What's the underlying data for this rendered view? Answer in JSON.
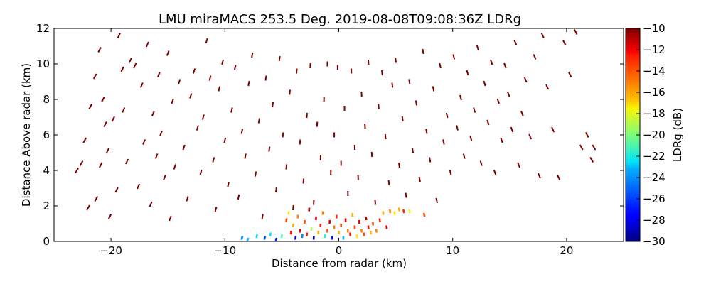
{
  "chart_data": {
    "type": "heatmap",
    "title": "LMU miraMACS 253.5 Deg. 2019-08-08T09:08:36Z  LDRg",
    "xlabel": "Distance from radar (km)",
    "ylabel": "Distance Above radar  (km)",
    "xlim": [
      -25,
      25
    ],
    "ylim": [
      0,
      12
    ],
    "x_ticks": [
      -20,
      -10,
      0,
      10,
      20
    ],
    "x_tick_labels": [
      "−20",
      "−10",
      "0",
      "10",
      "20"
    ],
    "y_ticks": [
      0,
      2,
      4,
      6,
      8,
      10,
      12
    ],
    "y_tick_labels": [
      "0",
      "2",
      "4",
      "6",
      "8",
      "10",
      "12"
    ],
    "grid": false,
    "colorbar": {
      "label": "LDRg (dB)",
      "range": [
        -30,
        -10
      ],
      "colormap": "jet",
      "ticks": [
        -30,
        -28,
        -26,
        -24,
        -22,
        -20,
        -18,
        -16,
        -14,
        -12,
        -10
      ],
      "tick_labels": [
        "−30",
        "−28",
        "−26",
        "−24",
        "−22",
        "−20",
        "−18",
        "−16",
        "−14",
        "−12",
        "−10"
      ]
    },
    "series": [
      {
        "values": [
          [
            -23.0,
            4.0,
            -10
          ],
          [
            -22.6,
            4.4,
            -10
          ],
          [
            -22.3,
            5.7,
            -10
          ],
          [
            -22.0,
            1.9,
            -10
          ],
          [
            -21.8,
            7.6,
            -10
          ],
          [
            -21.4,
            9.3,
            -10
          ],
          [
            -21.3,
            2.4,
            -10
          ],
          [
            -21.0,
            10.8,
            -10
          ],
          [
            -20.9,
            4.3,
            -10
          ],
          [
            -20.7,
            8.0,
            -10
          ],
          [
            -20.5,
            6.6,
            -10
          ],
          [
            -20.3,
            5.1,
            -10
          ],
          [
            -20.1,
            1.4,
            -10
          ],
          [
            -19.8,
            6.9,
            -10
          ],
          [
            -19.5,
            2.9,
            -10
          ],
          [
            -19.3,
            11.6,
            -10
          ],
          [
            -19.0,
            9.7,
            -10
          ],
          [
            -18.9,
            7.4,
            -10
          ],
          [
            -18.6,
            4.5,
            -10
          ],
          [
            -18.3,
            10.2,
            -10
          ],
          [
            -17.9,
            9.9,
            -10
          ],
          [
            -17.6,
            3.1,
            -10
          ],
          [
            -17.3,
            8.8,
            -10
          ],
          [
            -17.1,
            5.6,
            -10
          ],
          [
            -16.8,
            11.1,
            -10
          ],
          [
            -16.5,
            2.1,
            -10
          ],
          [
            -16.3,
            7.2,
            -10
          ],
          [
            -16.0,
            4.8,
            -10
          ],
          [
            -15.8,
            9.4,
            -10
          ],
          [
            -15.6,
            6.1,
            -10
          ],
          [
            -15.3,
            3.6,
            -10
          ],
          [
            -15.0,
            10.6,
            -10
          ],
          [
            -14.8,
            1.3,
            -10
          ],
          [
            -14.6,
            7.9,
            -10
          ],
          [
            -14.4,
            4.2,
            -10
          ],
          [
            -14.0,
            9.0,
            -10
          ],
          [
            -13.6,
            5.3,
            -10
          ],
          [
            -13.3,
            2.4,
            -10
          ],
          [
            -13.0,
            8.2,
            -10
          ],
          [
            -12.7,
            9.6,
            -10
          ],
          [
            -12.4,
            6.4,
            -10
          ],
          [
            -12.1,
            3.9,
            -10
          ],
          [
            -11.9,
            7.0,
            -10
          ],
          [
            -11.6,
            11.3,
            -10
          ],
          [
            -11.3,
            9.2,
            -10
          ],
          [
            -11.0,
            4.6,
            -10
          ],
          [
            -10.8,
            1.8,
            -10
          ],
          [
            -10.5,
            8.6,
            -10
          ],
          [
            -10.2,
            10.1,
            -10
          ],
          [
            -10.0,
            5.7,
            -10
          ],
          [
            -9.7,
            3.2,
            -10
          ],
          [
            -9.4,
            7.4,
            -10
          ],
          [
            -9.1,
            9.8,
            -10
          ],
          [
            -8.8,
            2.5,
            -10
          ],
          [
            -8.5,
            6.2,
            -10
          ],
          [
            -8.2,
            4.8,
            -10
          ],
          [
            -7.9,
            8.9,
            -10
          ],
          [
            -7.6,
            10.5,
            -10
          ],
          [
            -7.3,
            3.8,
            -10
          ],
          [
            -7.0,
            6.8,
            -10
          ],
          [
            -6.7,
            1.4,
            -10
          ],
          [
            -6.4,
            9.2,
            -10
          ],
          [
            -6.1,
            5.2,
            -10
          ],
          [
            -5.8,
            7.7,
            -10
          ],
          [
            -5.5,
            2.9,
            -10
          ],
          [
            -5.2,
            10.3,
            -10
          ],
          [
            -4.9,
            6.0,
            -10
          ],
          [
            -4.6,
            4.2,
            -10
          ],
          [
            -4.3,
            8.4,
            -10
          ],
          [
            -4.0,
            1.9,
            -10
          ],
          [
            -3.7,
            9.6,
            -10
          ],
          [
            -3.4,
            5.6,
            -10
          ],
          [
            -3.1,
            3.4,
            -10
          ],
          [
            -2.8,
            7.1,
            -10
          ],
          [
            -2.5,
            9.9,
            -10
          ],
          [
            -2.2,
            2.2,
            -10
          ],
          [
            -1.9,
            6.6,
            -10
          ],
          [
            -1.6,
            4.7,
            -10
          ],
          [
            -1.3,
            8.0,
            -10
          ],
          [
            -1.0,
            10.0,
            -10
          ],
          [
            -0.7,
            3.9,
            -10
          ],
          [
            -0.4,
            6.0,
            -10
          ],
          [
            -0.1,
            9.8,
            -10
          ],
          [
            0.2,
            4.4,
            -10
          ],
          [
            0.5,
            7.5,
            -10
          ],
          [
            0.8,
            2.7,
            -10
          ],
          [
            1.1,
            9.6,
            -10
          ],
          [
            1.4,
            5.3,
            -10
          ],
          [
            1.7,
            3.6,
            -10
          ],
          [
            2.0,
            8.3,
            -10
          ],
          [
            2.3,
            6.5,
            -10
          ],
          [
            2.6,
            10.1,
            -10
          ],
          [
            2.9,
            4.9,
            -10
          ],
          [
            3.2,
            2.2,
            -10
          ],
          [
            3.5,
            7.6,
            -10
          ],
          [
            3.8,
            9.5,
            -10
          ],
          [
            4.1,
            5.9,
            -10
          ],
          [
            4.4,
            3.3,
            -10
          ],
          [
            4.7,
            8.8,
            -10
          ],
          [
            5.0,
            10.2,
            -10
          ],
          [
            5.3,
            4.3,
            -10
          ],
          [
            5.6,
            6.9,
            -10
          ],
          [
            5.9,
            2.6,
            -10
          ],
          [
            6.2,
            9.0,
            -10
          ],
          [
            6.5,
            5.1,
            -10
          ],
          [
            6.8,
            7.8,
            -10
          ],
          [
            7.1,
            3.5,
            -10
          ],
          [
            7.4,
            10.7,
            -10
          ],
          [
            7.7,
            6.2,
            -10
          ],
          [
            8.0,
            4.6,
            -10
          ],
          [
            8.3,
            8.6,
            -10
          ],
          [
            8.6,
            2.3,
            -10
          ],
          [
            8.9,
            9.9,
            -10
          ],
          [
            9.2,
            5.6,
            -10
          ],
          [
            9.5,
            7.1,
            -10
          ],
          [
            9.8,
            3.9,
            -10
          ],
          [
            10.1,
            10.4,
            -10
          ],
          [
            10.4,
            6.4,
            -10
          ],
          [
            10.7,
            8.1,
            -10
          ],
          [
            11.0,
            4.8,
            -10
          ],
          [
            11.3,
            9.5,
            -10
          ],
          [
            11.6,
            5.8,
            -10
          ],
          [
            11.9,
            7.4,
            -10
          ],
          [
            12.2,
            10.9,
            -10
          ],
          [
            12.5,
            4.4,
            -10
          ],
          [
            12.8,
            8.9,
            -10
          ],
          [
            13.1,
            6.7,
            -10
          ],
          [
            13.4,
            10.1,
            -10
          ],
          [
            13.7,
            3.9,
            -10
          ],
          [
            14.0,
            7.9,
            -10
          ],
          [
            14.3,
            5.7,
            -10
          ],
          [
            14.6,
            9.9,
            -10
          ],
          [
            14.9,
            8.3,
            -10
          ],
          [
            15.2,
            6.3,
            -10
          ],
          [
            15.5,
            11.2,
            -10
          ],
          [
            15.8,
            4.3,
            -10
          ],
          [
            16.1,
            7.2,
            -10
          ],
          [
            16.4,
            9.1,
            -10
          ],
          [
            16.8,
            5.9,
            -10
          ],
          [
            17.2,
            10.4,
            -10
          ],
          [
            17.6,
            3.7,
            -10
          ],
          [
            17.9,
            11.6,
            -10
          ],
          [
            18.3,
            8.7,
            -10
          ],
          [
            18.8,
            6.3,
            -10
          ],
          [
            19.3,
            3.6,
            -10
          ],
          [
            19.8,
            11.2,
            -10
          ],
          [
            20.3,
            9.4,
            -10
          ],
          [
            20.8,
            11.8,
            -10
          ],
          [
            21.3,
            5.3,
            -10
          ],
          [
            21.8,
            6.0,
            -10
          ],
          [
            22.2,
            4.6,
            -10
          ],
          [
            22.4,
            5.3,
            -10
          ]
        ]
      },
      {
        "values": [
          [
            -8.5,
            0.2,
            -25
          ],
          [
            -8.0,
            0.1,
            -24
          ],
          [
            -7.2,
            0.3,
            -23
          ],
          [
            -6.5,
            0.2,
            -26
          ],
          [
            -6.0,
            0.4,
            -23
          ],
          [
            -5.5,
            0.1,
            -27
          ],
          [
            -5.0,
            0.3,
            -21
          ],
          [
            -4.6,
            1.2,
            -14
          ],
          [
            -4.4,
            1.6,
            -17
          ],
          [
            -4.2,
            0.5,
            -13
          ],
          [
            -4.0,
            0.9,
            -16
          ],
          [
            -3.8,
            0.2,
            -28
          ],
          [
            -3.6,
            1.4,
            -15
          ],
          [
            -3.4,
            0.6,
            -12
          ],
          [
            -3.2,
            0.3,
            -25
          ],
          [
            -3.0,
            1.1,
            -14
          ],
          [
            -2.8,
            0.4,
            -13
          ],
          [
            -2.6,
            1.8,
            -11
          ],
          [
            -2.4,
            0.7,
            -19
          ],
          [
            -2.2,
            0.2,
            -29
          ],
          [
            -2.0,
            1.3,
            -12
          ],
          [
            -1.8,
            0.5,
            -16
          ],
          [
            -1.6,
            0.9,
            -13
          ],
          [
            -1.4,
            1.6,
            -15
          ],
          [
            -1.2,
            0.3,
            -22
          ],
          [
            -1.0,
            0.6,
            -14
          ],
          [
            -0.8,
            1.1,
            -12
          ],
          [
            -0.6,
            0.2,
            -27
          ],
          [
            -0.4,
            0.8,
            -15
          ],
          [
            -0.2,
            1.4,
            -13
          ],
          [
            0.0,
            0.5,
            -16
          ],
          [
            0.2,
            0.9,
            -14
          ],
          [
            0.4,
            0.2,
            -24
          ],
          [
            0.6,
            1.2,
            -12
          ],
          [
            0.8,
            0.6,
            -15
          ],
          [
            1.0,
            0.4,
            -13
          ],
          [
            1.2,
            1.5,
            -16
          ],
          [
            1.4,
            0.8,
            -14
          ],
          [
            1.6,
            0.3,
            -17
          ],
          [
            1.8,
            1.1,
            -12
          ],
          [
            2.0,
            0.6,
            -15
          ],
          [
            2.2,
            0.4,
            -14
          ],
          [
            2.4,
            1.3,
            -11
          ],
          [
            2.6,
            0.8,
            -13
          ],
          [
            2.8,
            0.5,
            -16
          ],
          [
            3.0,
            1.0,
            -14
          ],
          [
            3.3,
            0.6,
            -15
          ],
          [
            3.6,
            1.2,
            -13
          ],
          [
            3.9,
            1.6,
            -16
          ],
          [
            4.2,
            0.8,
            -12
          ],
          [
            4.5,
            1.7,
            -15
          ],
          [
            4.9,
            1.6,
            -17
          ],
          [
            5.3,
            1.8,
            -16
          ],
          [
            5.7,
            1.7,
            -13
          ],
          [
            6.2,
            1.7,
            -18
          ],
          [
            7.5,
            1.5,
            -14
          ]
        ]
      }
    ]
  }
}
